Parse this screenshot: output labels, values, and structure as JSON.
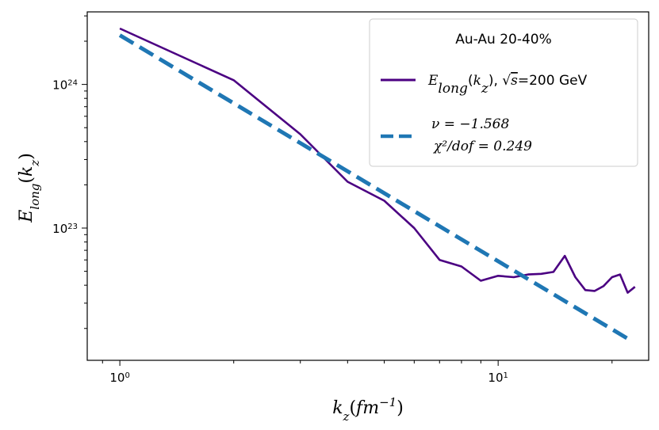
{
  "chart_data": {
    "type": "line",
    "xscale": "log",
    "yscale": "log",
    "xlim": [
      0.82,
      25
    ],
    "ylim": [
      1.2e+22,
      3.2e+24
    ],
    "xlabel": "k_z(fm^-1)",
    "ylabel": "E_long(k_z)",
    "x_ticks": [
      {
        "value": 1,
        "mantissa": "10",
        "exp": "0"
      },
      {
        "value": 10,
        "mantissa": "10",
        "exp": "1"
      }
    ],
    "y_ticks": [
      {
        "value": 1e+23,
        "mantissa": "10",
        "exp": "23"
      },
      {
        "value": 1e+24,
        "mantissa": "10",
        "exp": "24"
      }
    ],
    "legend": {
      "placement": "top-right",
      "title": "Au-Au  20-40%",
      "entries": [
        {
          "series": "data",
          "label": "E_long(k_z),  √s=200 GeV"
        },
        {
          "series": "fit",
          "label_line1": "ν = −1.568",
          "label_line2": "χ²/dof = 0.249"
        }
      ]
    },
    "series": [
      {
        "id": "data",
        "name": "E_long(k_z),  √s=200 GeV",
        "style": "solid",
        "color": "#4b0082",
        "x": [
          1,
          2,
          3,
          4,
          5,
          6,
          7,
          8,
          9,
          10,
          11,
          12,
          13,
          14,
          15,
          16,
          17,
          18,
          19,
          20,
          21,
          22,
          23
        ],
        "y": [
          2.45e+24,
          1.07e+24,
          4.5e+23,
          2.1e+23,
          1.55e+23,
          1e+23,
          6e+22,
          5.4e+22,
          4.3e+22,
          4.65e+22,
          4.55e+22,
          4.75e+22,
          4.8e+22,
          4.95e+22,
          6.4e+22,
          4.55e+22,
          3.7e+22,
          3.65e+22,
          3.95e+22,
          4.55e+22,
          4.75e+22,
          3.55e+22,
          3.9e+22
        ]
      },
      {
        "id": "fit",
        "name": "ν = −1.568, χ²/dof = 0.249",
        "style": "dashed",
        "color": "#1f77b4",
        "nu": -1.568,
        "x": [
          1,
          22
        ],
        "y": [
          2.2e+24,
          1.7e+22
        ]
      }
    ]
  }
}
